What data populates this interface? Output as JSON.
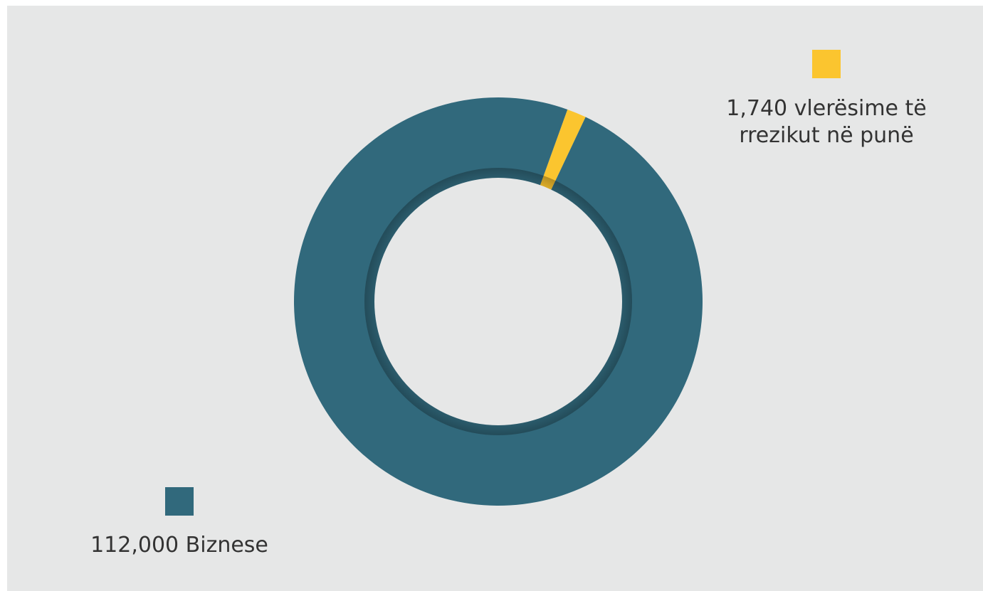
{
  "chart_data": {
    "type": "pie",
    "donut": true,
    "slices": [
      {
        "label": "1,740 vlerësime të\nrrezikut në punë",
        "value": 1740,
        "color": "#fbc52f"
      },
      {
        "label": "112,000 Biznese",
        "value": 112000,
        "color": "#31697c"
      }
    ],
    "legend": "beside-slices",
    "background": "#e6e7e7"
  }
}
